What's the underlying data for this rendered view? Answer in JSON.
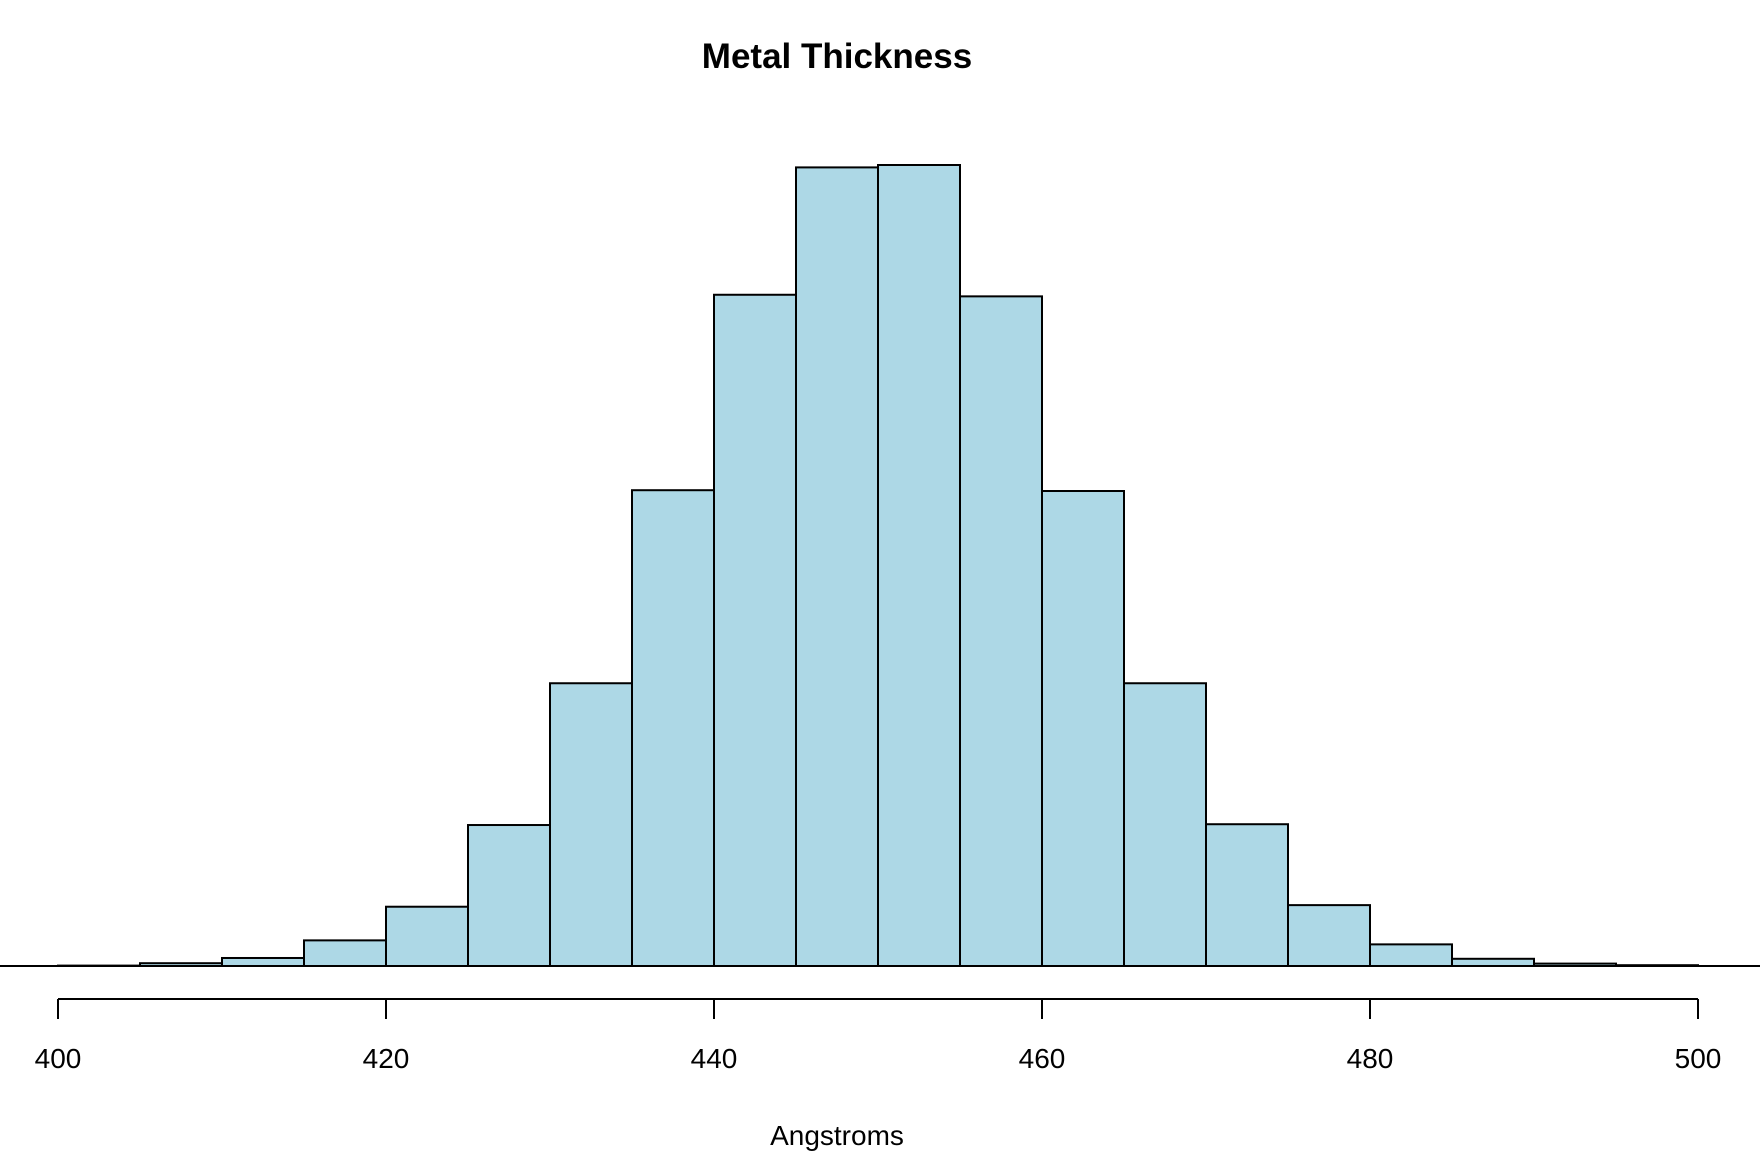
{
  "chart_data": {
    "type": "bar",
    "title": "Metal Thickness",
    "xlabel": "Angstroms",
    "ylabel": "",
    "bin_edges": [
      400,
      405,
      410,
      415,
      420,
      425,
      430,
      435,
      440,
      445,
      450,
      455,
      460,
      465,
      470,
      475,
      480,
      485,
      490,
      495,
      500
    ],
    "values": [
      0.05,
      0.35,
      1.0,
      3.2,
      7.4,
      17.6,
      35.3,
      59.4,
      83.8,
      99.7,
      100,
      83.6,
      59.3,
      35.3,
      17.7,
      7.6,
      2.7,
      0.9,
      0.3,
      0.1
    ],
    "xlim": [
      400,
      500
    ],
    "ylim": [
      0,
      100
    ],
    "x_ticks": [
      400,
      420,
      440,
      460,
      480,
      500
    ],
    "x_tick_labels": [
      "400",
      "420",
      "440",
      "460",
      "480",
      "500"
    ],
    "bar_fill": "#add8e6",
    "bar_stroke": "#000000",
    "grid": false,
    "legend": "none"
  }
}
